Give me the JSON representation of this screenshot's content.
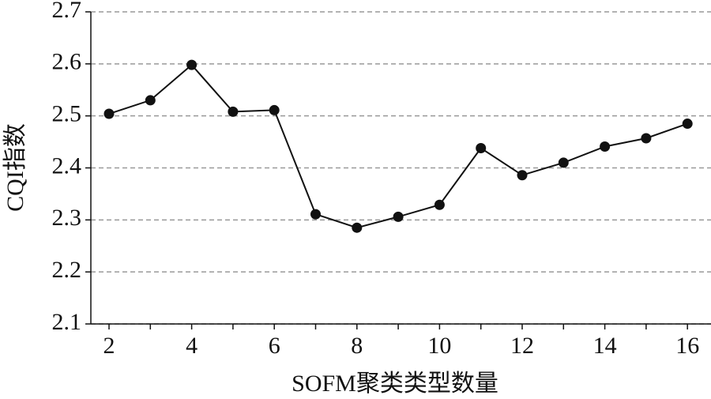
{
  "chart_data": {
    "type": "line",
    "x_label": "SOFM聚类类型数量",
    "y_label": "CQI指数",
    "x": [
      2,
      3,
      4,
      5,
      6,
      7,
      8,
      9,
      10,
      11,
      12,
      13,
      14,
      15,
      16
    ],
    "series": [
      {
        "color": "#111111",
        "values": [
          2.504,
          2.53,
          2.598,
          2.508,
          2.511,
          2.311,
          2.285,
          2.306,
          2.329,
          2.438,
          2.386,
          2.41,
          2.441,
          2.457,
          2.485
        ]
      }
    ],
    "xlim": [
      1.56,
      16.57
    ],
    "ylim": [
      2.1,
      2.7
    ],
    "xticks": [
      2,
      4,
      6,
      8,
      10,
      12,
      14,
      16
    ],
    "xminorticks": [
      3,
      5,
      7,
      9,
      11,
      13,
      15
    ],
    "yticks": [
      2.1,
      2.2,
      2.3,
      2.4,
      2.5,
      2.6,
      2.7
    ],
    "grid": true
  }
}
